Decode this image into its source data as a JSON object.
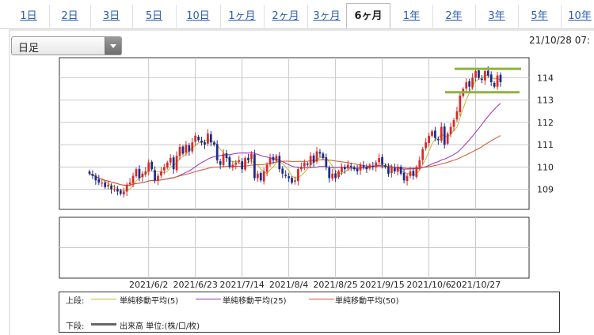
{
  "tabs": [
    "1日",
    "2日",
    "3日",
    "5日",
    "10日",
    "1ヶ月",
    "2ヶ月",
    "3ヶ月",
    "6ヶ月",
    "1年",
    "2年",
    "3年",
    "5年",
    "10年"
  ],
  "active_tab": 8,
  "interval_select": {
    "value": "日足"
  },
  "timestamp": "21/10/28 07:",
  "legend": {
    "upper_label": "上段:",
    "lower_label": "下段:",
    "ma5": "単純移動平均(5)",
    "ma25": "単純移動平均(25)",
    "ma50": "単純移動平均(50)",
    "volume": "出来高 単位:(株/口/枚)"
  },
  "colors": {
    "up": "#d62b2b",
    "down": "#1c2c8c",
    "ma5": "#c9b62a",
    "ma25": "#9a2fb5",
    "ma50": "#d2552b",
    "level": "#8cb43c"
  },
  "chart_data": {
    "type": "candlestick",
    "x_tick_labels": [
      "2021/6/2",
      "2021/6/23",
      "2021/7/14",
      "2021/8/4",
      "2021/8/25",
      "2021/9/15",
      "2021/10/6",
      "2021/10/27"
    ],
    "y_tick_labels": [
      "109",
      "110",
      "111",
      "112",
      "113",
      "114"
    ],
    "ylim": [
      108.1,
      114.9
    ],
    "close": [
      109.7,
      109.6,
      109.4,
      109.3,
      109.3,
      109.1,
      109.2,
      109.0,
      109.0,
      108.9,
      108.8,
      108.9,
      109.2,
      109.3,
      109.6,
      109.9,
      109.5,
      109.7,
      109.8,
      110.2,
      109.9,
      109.4,
      109.6,
      109.8,
      110.0,
      110.2,
      110.4,
      109.9,
      110.5,
      110.9,
      110.6,
      111.0,
      110.7,
      111.1,
      111.4,
      111.2,
      111.1,
      111.0,
      111.5,
      111.1,
      111.0,
      110.3,
      110.1,
      110.6,
      110.4,
      110.0,
      110.1,
      110.2,
      110.3,
      109.9,
      110.4,
      110.3,
      110.6,
      109.5,
      109.7,
      109.4,
      109.8,
      110.1,
      110.4,
      110.3,
      110.5,
      109.9,
      109.7,
      109.6,
      109.5,
      109.3,
      109.4,
      109.9,
      110.0,
      110.2,
      110.1,
      110.5,
      110.2,
      110.7,
      110.6,
      110.4,
      110.0,
      109.5,
      109.7,
      109.5,
      109.8,
      110.0,
      109.9,
      110.1,
      110.0,
      109.9,
      109.8,
      110.1,
      110.0,
      109.9,
      110.1,
      110.0,
      110.2,
      110.4,
      110.1,
      110.0,
      109.7,
      110.0,
      109.8,
      110.0,
      109.7,
      109.4,
      109.6,
      109.8,
      109.6,
      110.0,
      110.3,
      110.8,
      111.1,
      111.4,
      111.6,
      111.3,
      111.2,
      111.8,
      111.0,
      111.5,
      111.8,
      112.1,
      112.5,
      113.2,
      113.5,
      113.8,
      113.6,
      114.0,
      114.3,
      114.0,
      113.9,
      114.3,
      114.1,
      113.8,
      113.6,
      114.1,
      113.8
    ]
  }
}
